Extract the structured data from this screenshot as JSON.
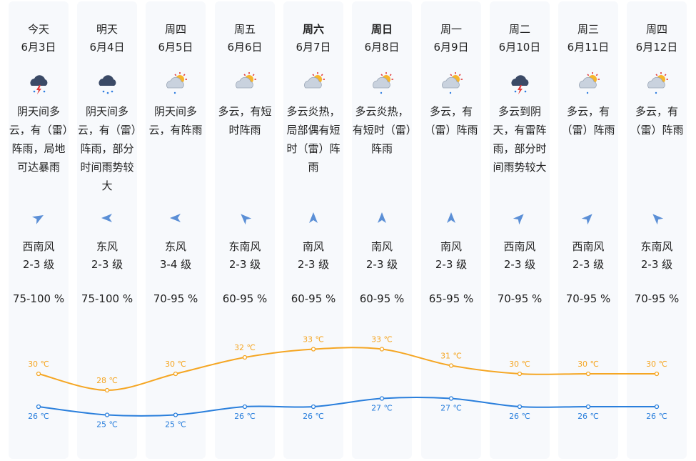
{
  "days": [
    {
      "weekday": "今天",
      "bold": false,
      "date": "6月3日",
      "icon": "thunder-rain-cloud-icon",
      "desc": "阴天间多云，有（雷）阵雨，局地可达暴雨",
      "wind_dir": "西南风",
      "wind_level": "2-3 级",
      "wind_arrow_deg": 60,
      "humidity": "75-100 %",
      "high": "30 ℃",
      "low": "26 ℃"
    },
    {
      "weekday": "明天",
      "bold": false,
      "date": "6月4日",
      "icon": "rain-cloud-icon",
      "desc": "阴天间多云，有（雷）阵雨，部分时间雨势较大",
      "wind_dir": "东风",
      "wind_level": "2-3 级",
      "wind_arrow_deg": -90,
      "humidity": "75-100 %",
      "high": "28 ℃",
      "low": "25 ℃"
    },
    {
      "weekday": "周四",
      "bold": false,
      "date": "6月5日",
      "icon": "sun-cloud-rain-icon",
      "desc": "阴天间多云，有阵雨",
      "wind_dir": "东风",
      "wind_level": "3-4 级",
      "wind_arrow_deg": -90,
      "humidity": "70-95 %",
      "high": "30 ℃",
      "low": "25 ℃"
    },
    {
      "weekday": "周五",
      "bold": false,
      "date": "6月6日",
      "icon": "sun-cloud-icon",
      "desc": "多云，有短时阵雨",
      "wind_dir": "东南风",
      "wind_level": "2-3 级",
      "wind_arrow_deg": -45,
      "humidity": "60-95 %",
      "high": "32 ℃",
      "low": "26 ℃"
    },
    {
      "weekday": "周六",
      "bold": true,
      "date": "6月7日",
      "icon": "sun-cloud-icon",
      "desc": "多云炎热，局部偶有短时（雷）阵雨",
      "wind_dir": "南风",
      "wind_level": "2-3 级",
      "wind_arrow_deg": 0,
      "humidity": "60-95 %",
      "high": "33 ℃",
      "low": "26 ℃"
    },
    {
      "weekday": "周日",
      "bold": true,
      "date": "6月8日",
      "icon": "sun-cloud-rain-icon",
      "desc": "多云炎热，有短时（雷）阵雨",
      "wind_dir": "南风",
      "wind_level": "2-3 级",
      "wind_arrow_deg": 0,
      "humidity": "60-95 %",
      "high": "33 ℃",
      "low": "27 ℃"
    },
    {
      "weekday": "周一",
      "bold": false,
      "date": "6月9日",
      "icon": "sun-cloud-rain-icon",
      "desc": "多云，有（雷）阵雨",
      "wind_dir": "南风",
      "wind_level": "2-3 级",
      "wind_arrow_deg": 0,
      "humidity": "65-95 %",
      "high": "31 ℃",
      "low": "27 ℃"
    },
    {
      "weekday": "周二",
      "bold": false,
      "date": "6月10日",
      "icon": "thunder-rain-cloud-icon",
      "desc": "多云到阴天，有雷阵雨，部分时间雨势较大",
      "wind_dir": "西南风",
      "wind_level": "2-3 级",
      "wind_arrow_deg": 45,
      "humidity": "70-95 %",
      "high": "30 ℃",
      "low": "26 ℃"
    },
    {
      "weekday": "周三",
      "bold": false,
      "date": "6月11日",
      "icon": "sun-cloud-rain-icon",
      "desc": "多云，有（雷）阵雨",
      "wind_dir": "西南风",
      "wind_level": "2-3 级",
      "wind_arrow_deg": 45,
      "humidity": "70-95 %",
      "high": "30 ℃",
      "low": "26 ℃"
    },
    {
      "weekday": "周四",
      "bold": false,
      "date": "6月12日",
      "icon": "sun-cloud-rain-icon",
      "desc": "多云，有（雷）阵雨",
      "wind_dir": "东南风",
      "wind_level": "2-3 级",
      "wind_arrow_deg": -45,
      "humidity": "70-95 %",
      "high": "30 ℃",
      "low": "26 ℃"
    }
  ],
  "colors": {
    "high_line": "#f5a623",
    "low_line": "#2a7fdc",
    "card_bg": "#f7f9fc",
    "arrow": "#5b8fd6"
  },
  "chart_data": {
    "type": "line",
    "categories": [
      "6月3日",
      "6月4日",
      "6月5日",
      "6月6日",
      "6月7日",
      "6月8日",
      "6月9日",
      "6月10日",
      "6月11日",
      "6月12日"
    ],
    "series": [
      {
        "values": [
          30,
          28,
          30,
          32,
          33,
          33,
          31,
          30,
          30,
          30
        ],
        "labels": [
          "30 ℃",
          "28 ℃",
          "30 ℃",
          "32 ℃",
          "33 ℃",
          "33 ℃",
          "31 ℃",
          "30 ℃",
          "30 ℃",
          "30 ℃"
        ]
      },
      {
        "values": [
          26,
          25,
          25,
          26,
          26,
          27,
          27,
          26,
          26,
          26
        ],
        "labels": [
          "26 ℃",
          "25 ℃",
          "25 ℃",
          "26 ℃",
          "26 ℃",
          "27 ℃",
          "27 ℃",
          "26 ℃",
          "26 ℃",
          "26 ℃"
        ]
      }
    ],
    "ylim": [
      25,
      33
    ]
  }
}
